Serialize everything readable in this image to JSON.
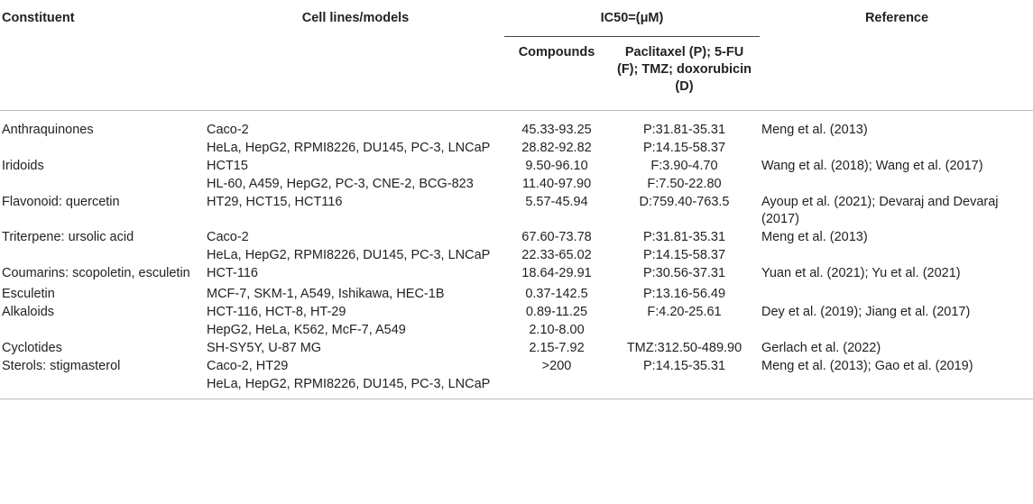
{
  "header": {
    "constituent": "Constituent",
    "cell_lines": "Cell lines/models",
    "ic50": "IC50=(μM)",
    "compounds": "Compounds",
    "reference_drugs": "Paclitaxel (P); 5-FU (F); TMZ; doxorubicin (D)",
    "reference": "Reference"
  },
  "rows": [
    {
      "constituent": "Anthraquinones",
      "cell_lines": "Caco-2",
      "compounds": "45.33-93.25",
      "drugs": "P:31.81-35.31",
      "reference": "Meng et al. (2013)"
    },
    {
      "constituent": "",
      "cell_lines": "HeLa, HepG2, RPMI8226, DU145, PC-3, LNCaP",
      "compounds": "28.82-92.82",
      "drugs": "P:14.15-58.37",
      "reference": ""
    },
    {
      "constituent": "Iridoids",
      "cell_lines": "HCT15",
      "compounds": "9.50-96.10",
      "drugs": "F:3.90-4.70",
      "reference": "Wang et al. (2018); Wang et al. (2017)"
    },
    {
      "constituent": "",
      "cell_lines": "HL-60, A459, HepG2, PC-3, CNE-2, BCG-823",
      "compounds": "11.40-97.90",
      "drugs": "F:7.50-22.80",
      "reference": ""
    },
    {
      "constituent": "Flavonoid: quercetin",
      "cell_lines": "HT29, HCT15, HCT116",
      "compounds": "5.57-45.94",
      "drugs": "D:759.40-763.5",
      "reference": "Ayoup et al. (2021); Devaraj and Devaraj (2017)"
    },
    {
      "constituent": "Triterpene: ursolic acid",
      "cell_lines": "Caco-2",
      "compounds": "67.60-73.78",
      "drugs": "P:31.81-35.31",
      "reference": "Meng et al. (2013)"
    },
    {
      "constituent": "",
      "cell_lines": "HeLa, HepG2, RPMI8226, DU145, PC-3, LNCaP",
      "compounds": "22.33-65.02",
      "drugs": "P:14.15-58.37",
      "reference": ""
    },
    {
      "constituent": "Coumarins: scopoletin, esculetin",
      "cell_lines": "HCT-116",
      "compounds": "18.64-29.91",
      "drugs": "P:30.56-37.31",
      "reference": "Yuan et al. (2021); Yu et al. (2021)"
    },
    {
      "constituent": "Esculetin",
      "cell_lines": "MCF-7, SKM-1, A549, Ishikawa, HEC-1B",
      "compounds": "0.37-142.5",
      "drugs": "P:13.16-56.49",
      "reference": ""
    },
    {
      "constituent": "Alkaloids",
      "cell_lines": "HCT-116, HCT-8, HT-29",
      "compounds": "0.89-11.25",
      "drugs": "F:4.20-25.61",
      "reference": "Dey et al. (2019); Jiang et al. (2017)"
    },
    {
      "constituent": "",
      "cell_lines": "HepG2, HeLa, K562, McF-7, A549",
      "compounds": "2.10-8.00",
      "drugs": "",
      "reference": ""
    },
    {
      "constituent": "Cyclotides",
      "cell_lines": "SH-SY5Y, U-87 MG",
      "compounds": "2.15-7.92",
      "drugs": "TMZ:312.50-489.90",
      "reference": "Gerlach et al. (2022)"
    },
    {
      "constituent": "Sterols: stigmasterol",
      "cell_lines": "Caco-2, HT29",
      "compounds": ">200",
      "drugs": "P:14.15-35.31",
      "reference": "Meng et al. (2013); Gao et al. (2019)"
    },
    {
      "constituent": "",
      "cell_lines": "HeLa, HepG2, RPMI8226, DU145, PC-3, LNCaP",
      "compounds": "",
      "drugs": "",
      "reference": ""
    }
  ]
}
